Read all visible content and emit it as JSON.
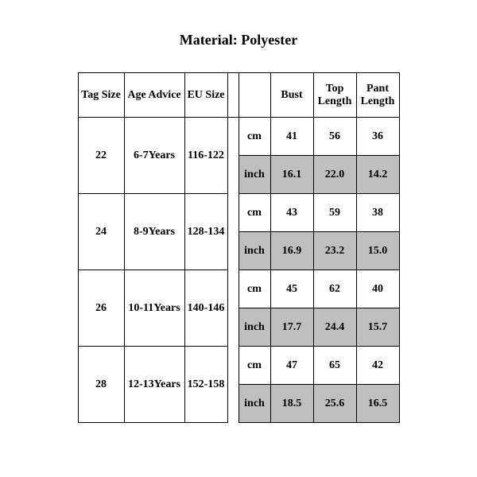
{
  "title": "Material: Polyester",
  "table": {
    "columns": {
      "tag": "Tag Size",
      "age": "Age Advice",
      "eu": "EU Size",
      "bust": "Bust",
      "top": "Top Length",
      "pant": "Pant Length"
    },
    "unit_cm": "cm",
    "unit_inch": "inch",
    "shade_color": "#bfbfbf",
    "border_color": "#000000",
    "font_family": "Times New Roman",
    "header_fontsize": 14,
    "cell_fontsize": 14,
    "rows": [
      {
        "tag": "22",
        "age": "6-7Years",
        "eu": "116-122",
        "cm": {
          "bust": "41",
          "top": "56",
          "pant": "36"
        },
        "inch": {
          "bust": "16.1",
          "top": "22.0",
          "pant": "14.2"
        }
      },
      {
        "tag": "24",
        "age": "8-9Years",
        "eu": "128-134",
        "cm": {
          "bust": "43",
          "top": "59",
          "pant": "38"
        },
        "inch": {
          "bust": "16.9",
          "top": "23.2",
          "pant": "15.0"
        }
      },
      {
        "tag": "26",
        "age": "10-11Years",
        "eu": "140-146",
        "cm": {
          "bust": "45",
          "top": "62",
          "pant": "40"
        },
        "inch": {
          "bust": "17.7",
          "top": "24.4",
          "pant": "15.7"
        }
      },
      {
        "tag": "28",
        "age": "12-13Years",
        "eu": "152-158",
        "cm": {
          "bust": "47",
          "top": "65",
          "pant": "42"
        },
        "inch": {
          "bust": "18.5",
          "top": "25.6",
          "pant": "16.5"
        }
      }
    ]
  }
}
